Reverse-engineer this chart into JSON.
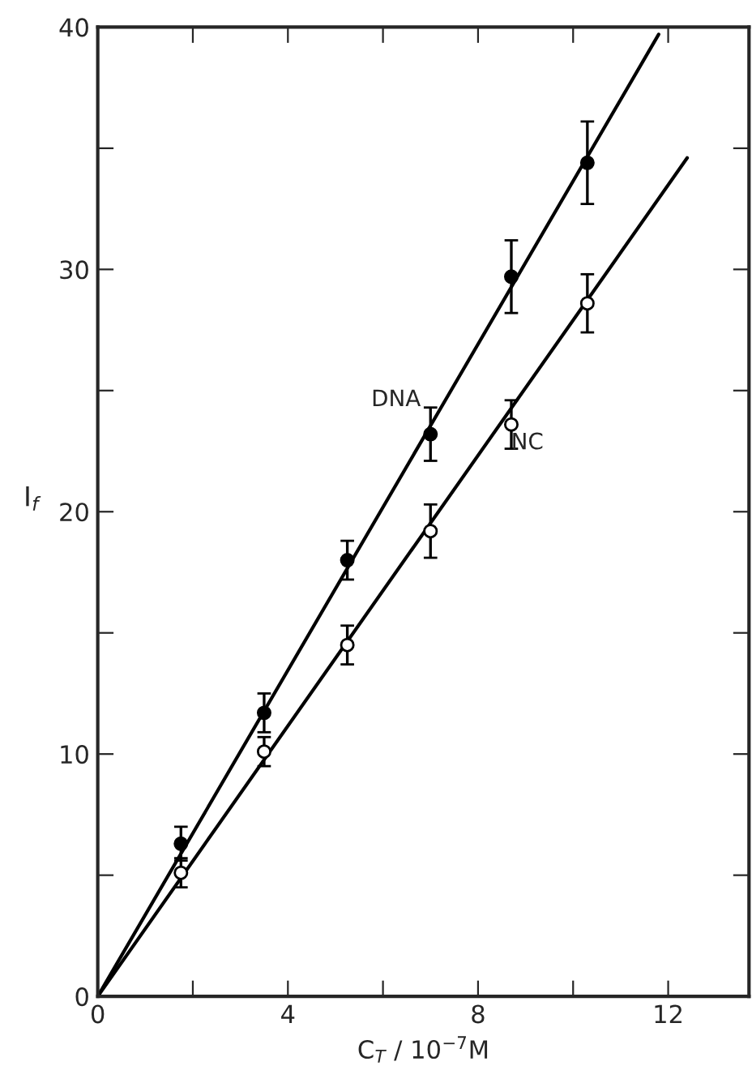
{
  "chart_data": {
    "type": "scatter",
    "xlabel": "C$_{T}$ / 10$^{−7}$M",
    "ylabel": "I$_{f}$",
    "xlim": [
      0,
      13.7
    ],
    "ylim": [
      0,
      40
    ],
    "xticks": [
      0,
      {
        "value": 2,
        "label": null
      },
      4,
      {
        "value": 6,
        "label": null
      },
      8,
      {
        "value": 10,
        "label": null
      },
      12
    ],
    "yticks": [
      0,
      {
        "value": 5,
        "label": null
      },
      10,
      {
        "value": 15,
        "label": null
      },
      20,
      {
        "value": 25,
        "label": null
      },
      30,
      {
        "value": 35,
        "label": null
      },
      40
    ],
    "grid": false,
    "legend": false,
    "series": [
      {
        "marker": "circle",
        "color": "#000000",
        "x": [
          1.75,
          3.5,
          5.25,
          7.0,
          8.7,
          10.3
        ],
        "values": [
          6.3,
          11.7,
          18.0,
          23.2,
          29.7,
          34.4
        ],
        "errors": [
          0.7,
          0.8,
          0.8,
          1.1,
          1.5,
          1.7
        ]
      },
      {
        "marker": "circle",
        "color": "#ffffff",
        "x": [
          1.75,
          3.5,
          5.25,
          7.0,
          8.7,
          10.3
        ],
        "values": [
          5.1,
          10.1,
          14.5,
          19.2,
          23.6,
          28.6
        ],
        "errors": [
          0.6,
          0.6,
          0.8,
          1.1,
          1.0,
          1.2
        ]
      },
      {
        "type": "line",
        "name": "DNA",
        "marker": "none",
        "color": "#000000",
        "x": [
          0,
          11.8
        ],
        "values": [
          0,
          39.7
        ]
      },
      {
        "type": "line",
        "name": "NC",
        "marker": "none",
        "color": "#000000",
        "x": [
          0,
          12.4
        ],
        "values": [
          0,
          34.6
        ]
      }
    ]
  }
}
